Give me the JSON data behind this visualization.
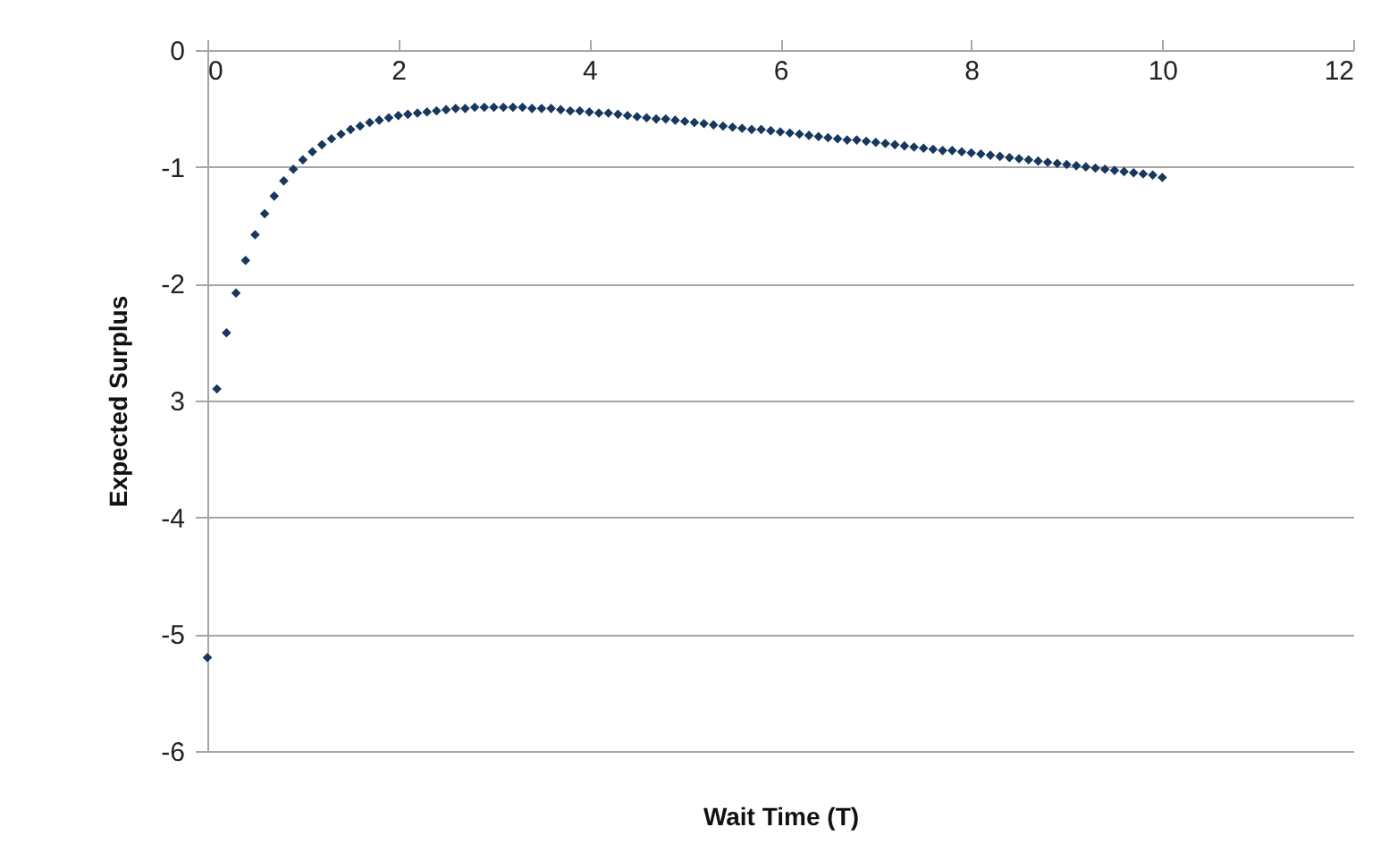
{
  "chart_data": {
    "type": "scatter",
    "xlabel": "Wait Time (T)",
    "ylabel": "Expected Surplus",
    "xlim": [
      0,
      12
    ],
    "xticks": [
      0,
      2,
      4,
      6,
      8,
      10,
      12
    ],
    "ylim": [
      -6,
      0
    ],
    "yticks": [
      0,
      -1,
      -2,
      {
        "value": -3,
        "label": "3"
      },
      -4,
      -5,
      -6
    ],
    "grid": "y",
    "marker": "diamond",
    "x": [
      0,
      0.1,
      0.2,
      0.3,
      0.4,
      0.5,
      0.6,
      0.7,
      0.8,
      0.9,
      1,
      1.1,
      1.2,
      1.3,
      1.4,
      1.5,
      1.6,
      1.7,
      1.8,
      1.9,
      2,
      2.1,
      2.2,
      2.3,
      2.4,
      2.5,
      2.6,
      2.7,
      2.8,
      2.9,
      3,
      3.1,
      3.2,
      3.3,
      3.4,
      3.5,
      3.6,
      3.7,
      3.8,
      3.9,
      4,
      4.1,
      4.2,
      4.3,
      4.4,
      4.5,
      4.6,
      4.7,
      4.8,
      4.9,
      5,
      5.1,
      5.2,
      5.3,
      5.4,
      5.5,
      5.6,
      5.7,
      5.8,
      5.9,
      6,
      6.1,
      6.2,
      6.3,
      6.4,
      6.5,
      6.6,
      6.7,
      6.8,
      6.9,
      7,
      7.1,
      7.2,
      7.3,
      7.4,
      7.5,
      7.6,
      7.7,
      7.8,
      7.9,
      8,
      8.1,
      8.2,
      8.3,
      8.4,
      8.5,
      8.6,
      8.7,
      8.8,
      8.9,
      9,
      9.1,
      9.2,
      9.3,
      9.4,
      9.5,
      9.6,
      9.7,
      9.8,
      9.9,
      10
    ],
    "series": [
      {
        "color": "#17375e",
        "values": [
          -5.2,
          -2.9,
          -2.42,
          -2.08,
          -1.8,
          -1.58,
          -1.4,
          -1.25,
          -1.12,
          -1.02,
          -0.94,
          -0.87,
          -0.81,
          -0.76,
          -0.72,
          -0.68,
          -0.65,
          -0.62,
          -0.6,
          -0.58,
          -0.56,
          -0.55,
          -0.54,
          -0.53,
          -0.52,
          -0.51,
          -0.5,
          -0.5,
          -0.49,
          -0.49,
          -0.49,
          -0.49,
          -0.49,
          -0.49,
          -0.5,
          -0.5,
          -0.5,
          -0.51,
          -0.52,
          -0.52,
          -0.53,
          -0.54,
          -0.54,
          -0.55,
          -0.56,
          -0.57,
          -0.58,
          -0.59,
          -0.59,
          -0.6,
          -0.61,
          -0.62,
          -0.63,
          -0.64,
          -0.65,
          -0.66,
          -0.67,
          -0.68,
          -0.68,
          -0.69,
          -0.7,
          -0.71,
          -0.72,
          -0.73,
          -0.74,
          -0.75,
          -0.76,
          -0.77,
          -0.77,
          -0.78,
          -0.79,
          -0.8,
          -0.81,
          -0.82,
          -0.83,
          -0.84,
          -0.85,
          -0.86,
          -0.86,
          -0.87,
          -0.88,
          -0.89,
          -0.9,
          -0.91,
          -0.92,
          -0.93,
          -0.94,
          -0.95,
          -0.96,
          -0.97,
          -0.98,
          -0.99,
          -1.0,
          -1.01,
          -1.02,
          -1.03,
          -1.04,
          -1.05,
          -1.06,
          -1.07,
          -1.09
        ]
      }
    ]
  }
}
